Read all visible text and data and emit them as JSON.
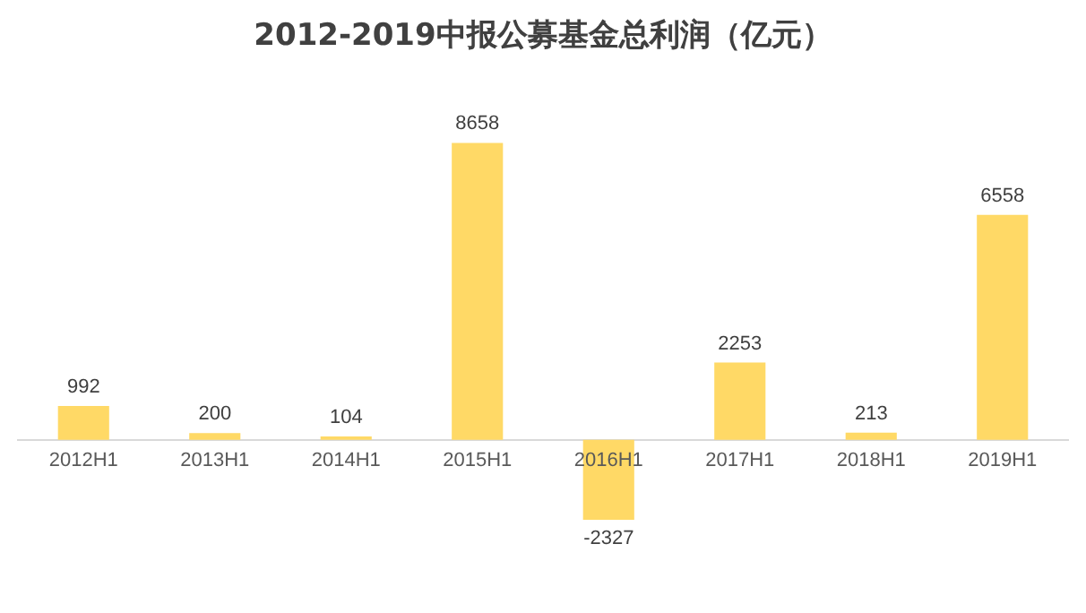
{
  "chart_data": {
    "type": "bar",
    "title": "2012-2019中报公募基金总利润（亿元）",
    "categories": [
      "2012H1",
      "2013H1",
      "2014H1",
      "2015H1",
      "2016H1",
      "2017H1",
      "2018H1",
      "2019H1"
    ],
    "values": [
      992,
      200,
      104,
      8658,
      -2327,
      2253,
      213,
      6558
    ],
    "color": "#ffd966",
    "data_labels": true,
    "grid": false,
    "legend": false
  }
}
